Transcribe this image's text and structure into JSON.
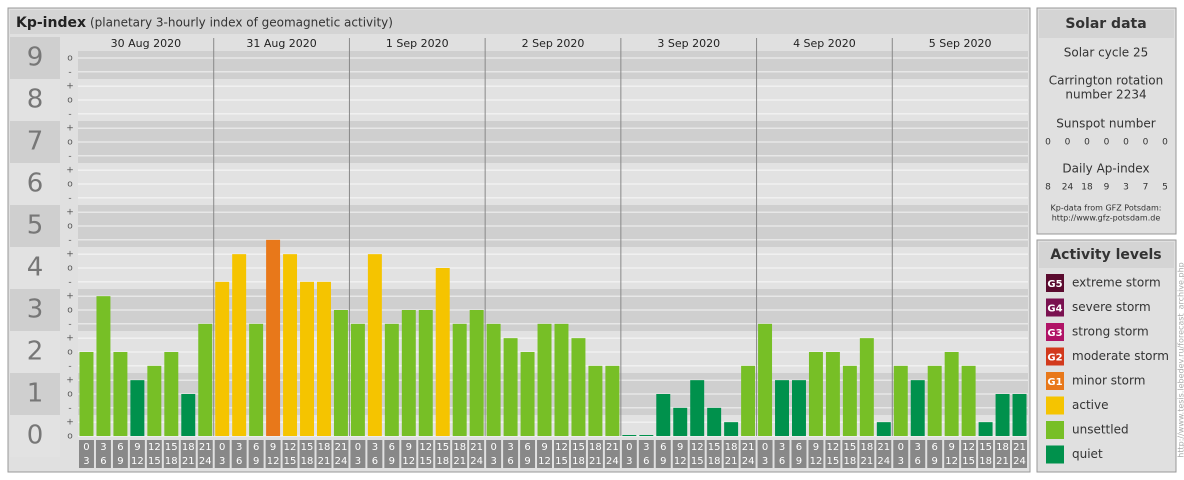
{
  "chart_data": {
    "type": "bar",
    "title": "Kp-index",
    "subtitle": "(planetary 3-hourly index of geomagnetic activity)",
    "days": [
      "30 Aug 2020",
      "31 Aug 2020",
      "1 Sep 2020",
      "2 Sep 2020",
      "3 Sep 2020",
      "4 Sep 2020",
      "5 Sep 2020"
    ],
    "intervals": [
      [
        "0",
        "3"
      ],
      [
        "3",
        "6"
      ],
      [
        "6",
        "9"
      ],
      [
        "9",
        "12"
      ],
      [
        "12",
        "15"
      ],
      [
        "15",
        "18"
      ],
      [
        "18",
        "21"
      ],
      [
        "21",
        "24"
      ]
    ],
    "values": [
      2,
      3.33,
      2,
      1.33,
      1.67,
      2,
      1,
      2.67,
      3.67,
      4.33,
      2.67,
      4.67,
      4.33,
      3.67,
      3.67,
      3,
      2.67,
      4.33,
      2.67,
      3,
      3,
      4,
      2.67,
      3,
      2.67,
      2.33,
      2,
      2.67,
      2.67,
      2.33,
      1.67,
      1.67,
      0,
      0,
      1,
      0.67,
      1.33,
      0.67,
      0.33,
      1.67,
      2.67,
      1.33,
      1.33,
      2,
      2,
      1.67,
      2.33,
      0.33,
      1.67,
      1.33,
      1.67,
      2,
      1.67,
      0.33,
      1,
      1
    ],
    "colors": [
      "#77bf26",
      "#77bf26",
      "#77bf26",
      "#00914c",
      "#77bf26",
      "#77bf26",
      "#00914c",
      "#77bf26",
      "#f5c400",
      "#f5c400",
      "#77bf26",
      "#e8781a",
      "#f5c400",
      "#f5c400",
      "#f5c400",
      "#77bf26",
      "#77bf26",
      "#f5c400",
      "#77bf26",
      "#77bf26",
      "#77bf26",
      "#f5c400",
      "#77bf26",
      "#77bf26",
      "#77bf26",
      "#77bf26",
      "#77bf26",
      "#77bf26",
      "#77bf26",
      "#77bf26",
      "#77bf26",
      "#77bf26",
      "#00914c",
      "#00914c",
      "#00914c",
      "#00914c",
      "#00914c",
      "#00914c",
      "#00914c",
      "#77bf26",
      "#77bf26",
      "#00914c",
      "#00914c",
      "#77bf26",
      "#77bf26",
      "#77bf26",
      "#77bf26",
      "#00914c",
      "#77bf26",
      "#00914c",
      "#77bf26",
      "#77bf26",
      "#77bf26",
      "#00914c",
      "#00914c",
      "#00914c"
    ],
    "ylim": [
      0,
      9
    ],
    "yticks": [
      0,
      1,
      2,
      3,
      4,
      5,
      6,
      7,
      8,
      9
    ],
    "yminor": [
      {
        "value": 0,
        "label": "o"
      },
      {
        "value": 0.33,
        "label": "+"
      },
      {
        "value": 0.67,
        "label": "-"
      },
      {
        "value": 1,
        "label": "o"
      },
      {
        "value": 1.33,
        "label": "+"
      },
      {
        "value": 1.67,
        "label": "-"
      },
      {
        "value": 2,
        "label": "o"
      },
      {
        "value": 2.33,
        "label": "+"
      },
      {
        "value": 2.67,
        "label": "-"
      },
      {
        "value": 3,
        "label": "o"
      },
      {
        "value": 3.33,
        "label": "+"
      },
      {
        "value": 3.67,
        "label": "-"
      },
      {
        "value": 4,
        "label": "o"
      },
      {
        "value": 4.33,
        "label": "+"
      },
      {
        "value": 4.67,
        "label": "-"
      },
      {
        "value": 5,
        "label": "o"
      },
      {
        "value": 5.33,
        "label": "+"
      },
      {
        "value": 5.67,
        "label": "-"
      },
      {
        "value": 6,
        "label": "o"
      },
      {
        "value": 6.33,
        "label": "+"
      },
      {
        "value": 6.67,
        "label": "-"
      },
      {
        "value": 7,
        "label": "o"
      },
      {
        "value": 7.33,
        "label": "+"
      },
      {
        "value": 7.67,
        "label": "-"
      },
      {
        "value": 8,
        "label": "o"
      },
      {
        "value": 8.33,
        "label": "+"
      },
      {
        "value": 8.67,
        "label": "-"
      },
      {
        "value": 9,
        "label": "o"
      }
    ],
    "grid": true
  },
  "solar_data": {
    "title": "Solar data",
    "cycle": "Solar cycle 25",
    "carrington": [
      "Carrington rotation",
      "number 2234"
    ],
    "sunspot_label": "Sunspot number",
    "sunspot": [
      0,
      0,
      0,
      0,
      0,
      0,
      0
    ],
    "ap_label": "Daily Ap-index",
    "ap": [
      8,
      24,
      18,
      9,
      3,
      7,
      5
    ],
    "source": "Kp-data from GFZ Potsdam:",
    "url": "http://www.gfz-potsdam.de"
  },
  "activity_levels": {
    "title": "Activity levels",
    "items": [
      {
        "code": "G5",
        "label": "extreme storm",
        "color": "#5a0a2e"
      },
      {
        "code": "G4",
        "label": "severe storm",
        "color": "#7a1150"
      },
      {
        "code": "G3",
        "label": "strong storm",
        "color": "#b01366"
      },
      {
        "code": "G2",
        "label": "moderate storm",
        "color": "#d2391c"
      },
      {
        "code": "G1",
        "label": "minor storm",
        "color": "#e8781a"
      },
      {
        "label": "active",
        "color": "#f5c400"
      },
      {
        "label": "unsettled",
        "color": "#77bf26"
      },
      {
        "label": "quiet",
        "color": "#00914c"
      }
    ]
  },
  "watermark": "http://www.tesis.lebedev.ru/forecast_archive.php"
}
